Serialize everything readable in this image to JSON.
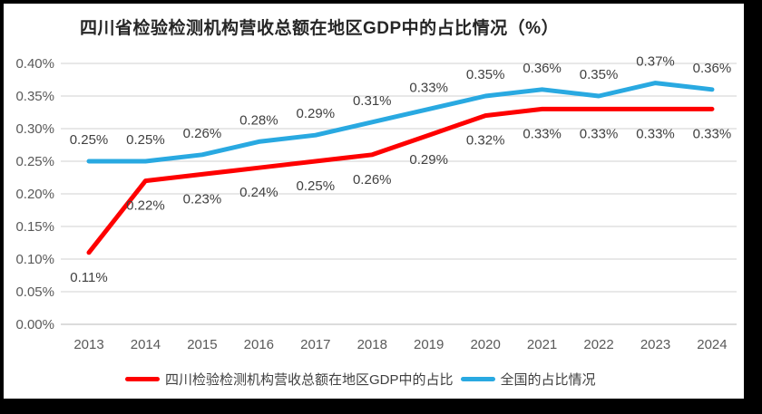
{
  "chart_data": {
    "type": "line",
    "title": "四川省检验检测机构营收总额在地区GDP中的占比情况（%）",
    "categories": [
      "2013",
      "2014",
      "2015",
      "2016",
      "2017",
      "2018",
      "2019",
      "2020",
      "2021",
      "2022",
      "2023",
      "2024"
    ],
    "series": [
      {
        "name": "四川检验检测机构营收总额在地区GDP中的占比",
        "color": "#FE0000",
        "values": [
          0.11,
          0.22,
          0.23,
          0.24,
          0.25,
          0.26,
          0.29,
          0.32,
          0.33,
          0.33,
          0.33,
          0.33
        ],
        "data_labels": [
          "0.11%",
          "0.22%",
          "0.23%",
          "0.24%",
          "0.25%",
          "0.26%",
          "0.29%",
          "0.32%",
          "0.33%",
          "0.33%",
          "0.33%",
          "0.33%"
        ],
        "label_position": "below"
      },
      {
        "name": "全国的占比情况",
        "color": "#29A9E1",
        "values": [
          0.25,
          0.25,
          0.26,
          0.28,
          0.29,
          0.31,
          0.33,
          0.35,
          0.36,
          0.35,
          0.37,
          0.36
        ],
        "data_labels": [
          "0.25%",
          "0.25%",
          "0.26%",
          "0.28%",
          "0.29%",
          "0.31%",
          "0.33%",
          "0.35%",
          "0.36%",
          "0.35%",
          "0.37%",
          "0.36%"
        ],
        "label_position": "above"
      }
    ],
    "yticks": [
      "0.00%",
      "0.05%",
      "0.10%",
      "0.15%",
      "0.20%",
      "0.25%",
      "0.30%",
      "0.35%",
      "0.40%"
    ],
    "ylim": [
      0,
      0.4
    ],
    "xlabel": "",
    "ylabel": "",
    "grid": true,
    "legend_position": "bottom",
    "colors": {
      "gridline": "#D9D9D9",
      "axis_line": "#C6C6C6",
      "tick_label": "#595959",
      "data_label": "#404040",
      "title": "#262626"
    }
  }
}
